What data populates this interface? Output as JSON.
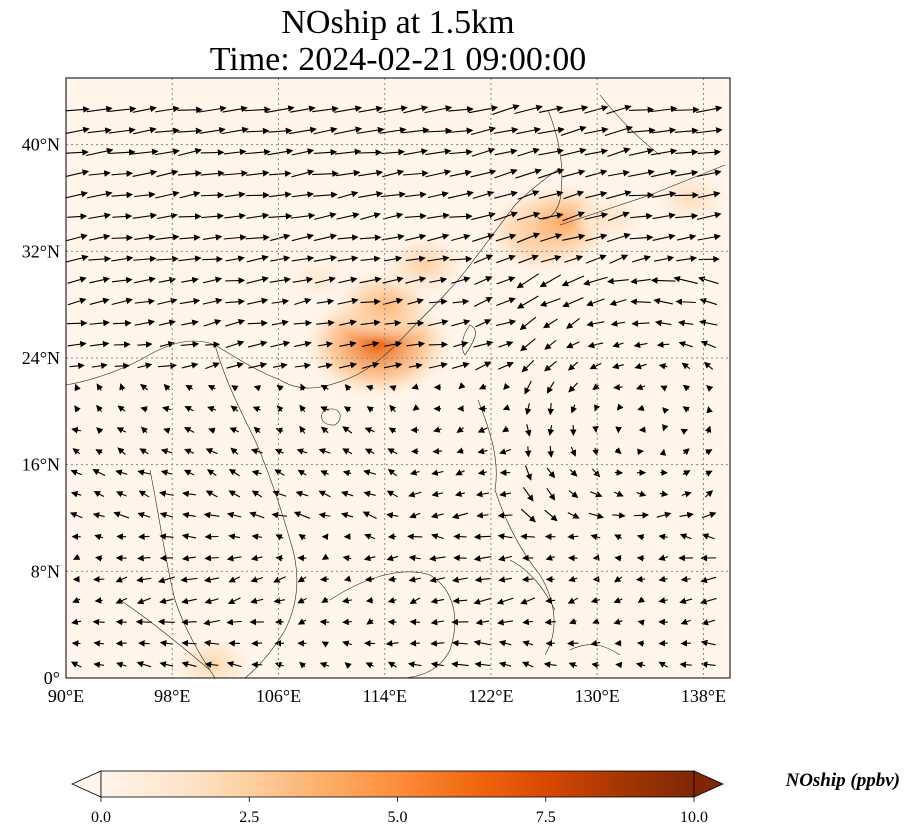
{
  "title": {
    "line1": "NOship at 1.5km",
    "line2": "Time: 2024-02-21 09:00:00"
  },
  "map": {
    "lon_range": [
      90,
      140
    ],
    "lat_range": [
      0,
      45
    ],
    "xticks": [
      {
        "value": 90,
        "label": "90°E"
      },
      {
        "value": 98,
        "label": "98°E"
      },
      {
        "value": 106,
        "label": "106°E"
      },
      {
        "value": 114,
        "label": "114°E"
      },
      {
        "value": 122,
        "label": "122°E"
      },
      {
        "value": 130,
        "label": "130°E"
      },
      {
        "value": 138,
        "label": "138°E"
      }
    ],
    "yticks": [
      {
        "value": 0,
        "label": "0°"
      },
      {
        "value": 8,
        "label": "8°N"
      },
      {
        "value": 16,
        "label": "16°N"
      },
      {
        "value": 24,
        "label": "24°N"
      },
      {
        "value": 32,
        "label": "32°N"
      },
      {
        "value": 40,
        "label": "40°N"
      }
    ],
    "gridlines": true,
    "background_color": "#fff5eb",
    "field_variable": "NOship",
    "vectors": "wind at 1.5km",
    "hotspots": [
      {
        "lon": 113.5,
        "lat": 25,
        "value": 6.5
      },
      {
        "lon": 114,
        "lat": 28,
        "value": 3.5
      },
      {
        "lon": 117,
        "lat": 31,
        "value": 2.5
      },
      {
        "lon": 126,
        "lat": 33.5,
        "value": 4.5
      },
      {
        "lon": 127.5,
        "lat": 34.2,
        "value": 4.0
      },
      {
        "lon": 131,
        "lat": 34.5,
        "value": 1.5
      },
      {
        "lon": 137,
        "lat": 36,
        "value": 1.8
      },
      {
        "lon": 101,
        "lat": 1,
        "value": 2.2
      },
      {
        "lon": 109,
        "lat": 30,
        "value": 1.0
      }
    ]
  },
  "colorbar": {
    "label": "NOship (ppbv)",
    "min": 0,
    "max": 10,
    "extend": "both",
    "colormap": [
      "#fff5eb",
      "#fee6ce",
      "#fdd0a2",
      "#fdae6b",
      "#fd8d3c",
      "#f16913",
      "#d94801",
      "#a63603",
      "#7f2704"
    ],
    "ticks": [
      {
        "value": 0,
        "label": "0.0"
      },
      {
        "value": 2.5,
        "label": "2.5"
      },
      {
        "value": 5,
        "label": "5.0"
      },
      {
        "value": 7.5,
        "label": "7.5"
      },
      {
        "value": 10,
        "label": "10.0"
      }
    ]
  }
}
